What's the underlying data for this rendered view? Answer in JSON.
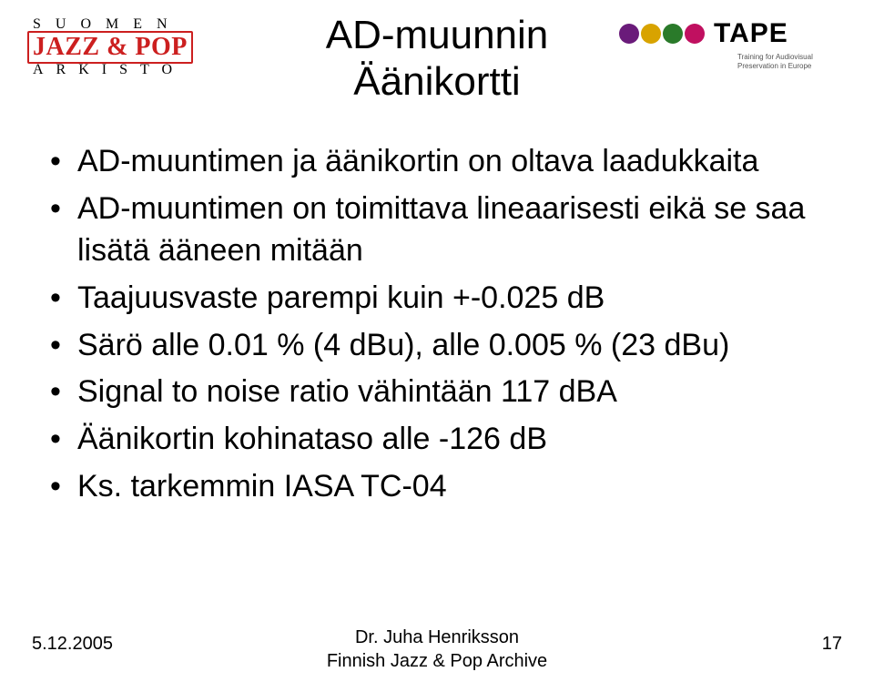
{
  "logo_left": {
    "line1": "SUOMEN",
    "brand": "JAZZ & POP",
    "line3": "ARKISTO",
    "brand_color": "#cc1f1f"
  },
  "logo_right": {
    "word": "TAPE",
    "sub1": "Training for Audiovisual",
    "sub2": "Preservation in Europe",
    "dot_colors": [
      "#6a1b7a",
      "#d8a300",
      "#2a7a2a",
      "#c01060"
    ]
  },
  "title": {
    "line1": "AD-muunnin",
    "line2": "Äänikortti",
    "fontsize": 44,
    "color": "#000000"
  },
  "bullets": [
    "AD-muuntimen ja äänikortin on oltava laadukkaita",
    "AD-muuntimen on toimittava lineaarisesti eikä se saa lisätä ääneen mitään",
    "Taajuusvaste parempi kuin +-0.025 dB",
    "Särö alle 0.01 % (4 dBu), alle 0.005 % (23 dBu)",
    "Signal to noise ratio vähintään 117 dBA",
    "Äänikortin kohinataso alle -126 dB",
    "Ks. tarkemmin IASA TC-04"
  ],
  "bullet_fontsize": 34,
  "footer": {
    "date": "5.12.2005",
    "author_line1": "Dr. Juha Henriksson",
    "author_line2": "Finnish Jazz & Pop Archive",
    "page": "17",
    "fontsize": 20
  },
  "background_color": "#ffffff"
}
